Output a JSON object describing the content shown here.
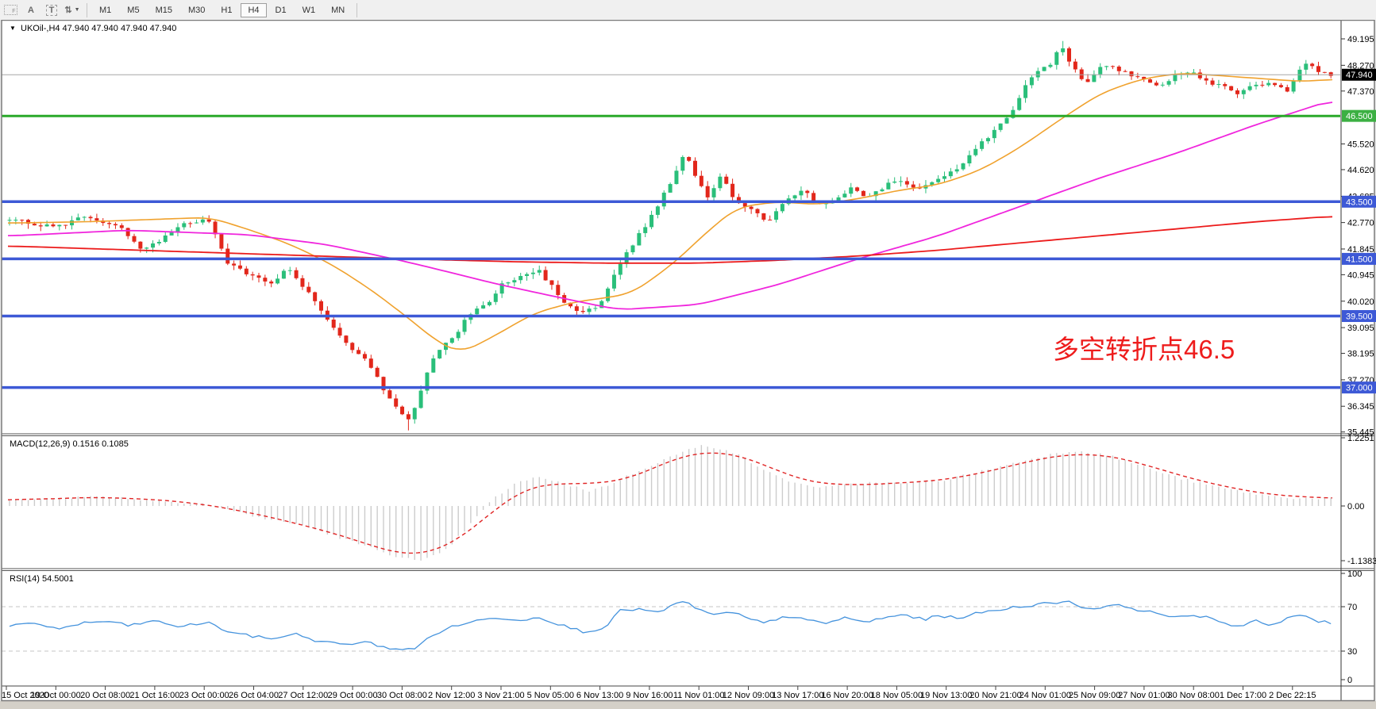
{
  "toolbar": {
    "icons": [
      {
        "name": "chart-template-icon",
        "glyph": "F"
      },
      {
        "name": "text-label-icon",
        "glyph": "A"
      },
      {
        "name": "text-tool-icon",
        "glyph": "T"
      },
      {
        "name": "arrows-tool-icon",
        "glyph": "⇅"
      }
    ],
    "timeframes": [
      "M1",
      "M5",
      "M15",
      "M30",
      "H1",
      "H4",
      "D1",
      "W1",
      "MN"
    ],
    "active_timeframe": "H4"
  },
  "chart": {
    "title_marker": "▼",
    "title": "UKOil-,H4 47.940 47.940 47.940 47.940",
    "symbol": "UKOil-",
    "timeframe": "H4",
    "annotation": "多空转折点46.5",
    "annotation_color": "#ee1c1c"
  },
  "chart_data": {
    "type": "candlestick",
    "title": "UKOil-,H4",
    "ohlc_display": {
      "open": "47.940",
      "high": "47.940",
      "low": "47.940",
      "close": "47.940"
    },
    "price_axis_ticks": [
      "49.195",
      "48.270",
      "47.370",
      "45.520",
      "44.620",
      "43.685",
      "42.770",
      "41.845",
      "40.945",
      "40.020",
      "39.095",
      "38.195",
      "37.270",
      "36.345",
      "35.445"
    ],
    "price_badges": [
      {
        "label": "47.940",
        "price": 47.94,
        "bg": "#000000"
      },
      {
        "label": "46.500",
        "price": 46.5,
        "bg": "#3cb043"
      },
      {
        "label": "43.500",
        "price": 43.5,
        "bg": "#3d59d6"
      },
      {
        "label": "41.500",
        "price": 41.5,
        "bg": "#3d59d6"
      },
      {
        "label": "39.500",
        "price": 39.5,
        "bg": "#3d59d6"
      },
      {
        "label": "37.000",
        "price": 37.0,
        "bg": "#3d59d6"
      }
    ],
    "hlines": [
      {
        "price": 47.94,
        "color": "#a6a6a6",
        "width": 1
      },
      {
        "price": 46.5,
        "color": "#2aa92a",
        "width": 3
      },
      {
        "price": 43.5,
        "color": "#3d59d6",
        "width": 3.5
      },
      {
        "price": 41.5,
        "color": "#3d59d6",
        "width": 3.5
      },
      {
        "price": 39.5,
        "color": "#3d59d6",
        "width": 3.5
      },
      {
        "price": 37.0,
        "color": "#3d59d6",
        "width": 3.5
      }
    ],
    "time_labels": [
      "15 Oct 2020",
      "19 Oct 00:00",
      "20 Oct 08:00",
      "21 Oct 16:00",
      "23 Oct 00:00",
      "26 Oct 04:00",
      "27 Oct 12:00",
      "29 Oct 00:00",
      "30 Oct 08:00",
      "2 Nov 12:00",
      "3 Nov 21:00",
      "5 Nov 05:00",
      "6 Nov 13:00",
      "9 Nov 16:00",
      "11 Nov 01:00",
      "12 Nov 09:00",
      "13 Nov 17:00",
      "16 Nov 20:00",
      "18 Nov 05:00",
      "19 Nov 13:00",
      "20 Nov 21:00",
      "24 Nov 01:00",
      "25 Nov 09:00",
      "27 Nov 01:00",
      "30 Nov 08:00",
      "1 Dec 17:00",
      "2 Dec 22:15"
    ],
    "price_path": [
      [
        0.005,
        42.85
      ],
      [
        0.037,
        42.6
      ],
      [
        0.058,
        43.0
      ],
      [
        0.085,
        42.6
      ],
      [
        0.1,
        41.85
      ],
      [
        0.113,
        42.1
      ],
      [
        0.131,
        42.75
      ],
      [
        0.152,
        42.85
      ],
      [
        0.165,
        41.4
      ],
      [
        0.183,
        40.9
      ],
      [
        0.201,
        40.6
      ],
      [
        0.21,
        41.3
      ],
      [
        0.226,
        40.3
      ],
      [
        0.241,
        39.4
      ],
      [
        0.256,
        38.4
      ],
      [
        0.268,
        38.0
      ],
      [
        0.277,
        37.4
      ],
      [
        0.287,
        36.6
      ],
      [
        0.303,
        35.8
      ],
      [
        0.314,
        37.4
      ],
      [
        0.323,
        38.3
      ],
      [
        0.338,
        38.9
      ],
      [
        0.348,
        39.6
      ],
      [
        0.36,
        39.9
      ],
      [
        0.372,
        40.6
      ],
      [
        0.39,
        40.9
      ],
      [
        0.399,
        41.1
      ],
      [
        0.409,
        40.6
      ],
      [
        0.421,
        39.9
      ],
      [
        0.433,
        39.6
      ],
      [
        0.445,
        39.9
      ],
      [
        0.457,
        41.0
      ],
      [
        0.47,
        42.0
      ],
      [
        0.482,
        42.8
      ],
      [
        0.494,
        43.8
      ],
      [
        0.503,
        44.5
      ],
      [
        0.509,
        45.2
      ],
      [
        0.518,
        44.4
      ],
      [
        0.527,
        43.6
      ],
      [
        0.537,
        44.4
      ],
      [
        0.549,
        43.4
      ],
      [
        0.561,
        43.2
      ],
      [
        0.573,
        42.8
      ],
      [
        0.585,
        43.6
      ],
      [
        0.598,
        43.9
      ],
      [
        0.61,
        43.4
      ],
      [
        0.622,
        43.5
      ],
      [
        0.634,
        44.0
      ],
      [
        0.646,
        43.7
      ],
      [
        0.659,
        44.0
      ],
      [
        0.671,
        44.3
      ],
      [
        0.683,
        43.9
      ],
      [
        0.695,
        44.2
      ],
      [
        0.707,
        44.4
      ],
      [
        0.72,
        44.9
      ],
      [
        0.732,
        45.5
      ],
      [
        0.744,
        46.1
      ],
      [
        0.756,
        46.7
      ],
      [
        0.765,
        47.5
      ],
      [
        0.774,
        48.0
      ],
      [
        0.784,
        48.3
      ],
      [
        0.793,
        48.9
      ],
      [
        0.802,
        48.2
      ],
      [
        0.811,
        47.6
      ],
      [
        0.82,
        48.1
      ],
      [
        0.829,
        48.3
      ],
      [
        0.841,
        48.0
      ],
      [
        0.854,
        47.8
      ],
      [
        0.866,
        47.5
      ],
      [
        0.878,
        47.9
      ],
      [
        0.89,
        48.1
      ],
      [
        0.902,
        47.7
      ],
      [
        0.915,
        47.5
      ],
      [
        0.927,
        47.3
      ],
      [
        0.939,
        47.6
      ],
      [
        0.951,
        47.7
      ],
      [
        0.963,
        47.4
      ],
      [
        0.976,
        48.4
      ],
      [
        0.988,
        48.0
      ],
      [
        1.0,
        47.94
      ]
    ],
    "extremes": [
      {
        "f": 0.303,
        "low": 35.5
      },
      {
        "f": 0.793,
        "high": 49.12
      }
    ],
    "ma_orange": [
      [
        0,
        42.75
      ],
      [
        0.061,
        42.8
      ],
      [
        0.122,
        42.9
      ],
      [
        0.152,
        42.95
      ],
      [
        0.183,
        42.5
      ],
      [
        0.213,
        42.0
      ],
      [
        0.244,
        41.3
      ],
      [
        0.274,
        40.4
      ],
      [
        0.305,
        39.3
      ],
      [
        0.323,
        38.6
      ],
      [
        0.341,
        38.2
      ],
      [
        0.366,
        38.8
      ],
      [
        0.396,
        39.6
      ],
      [
        0.427,
        40.0
      ],
      [
        0.445,
        40.1
      ],
      [
        0.47,
        40.3
      ],
      [
        0.5,
        41.3
      ],
      [
        0.53,
        42.6
      ],
      [
        0.549,
        43.3
      ],
      [
        0.579,
        43.5
      ],
      [
        0.61,
        43.4
      ],
      [
        0.64,
        43.6
      ],
      [
        0.671,
        43.9
      ],
      [
        0.701,
        44.1
      ],
      [
        0.732,
        44.6
      ],
      [
        0.762,
        45.4
      ],
      [
        0.793,
        46.4
      ],
      [
        0.823,
        47.3
      ],
      [
        0.854,
        47.8
      ],
      [
        0.884,
        48.0
      ],
      [
        0.915,
        47.9
      ],
      [
        0.945,
        47.8
      ],
      [
        0.976,
        47.7
      ],
      [
        1.0,
        47.8
      ]
    ],
    "ma_magenta": [
      [
        0,
        42.3
      ],
      [
        0.09,
        42.5
      ],
      [
        0.18,
        42.35
      ],
      [
        0.24,
        42.0
      ],
      [
        0.3,
        41.4
      ],
      [
        0.37,
        40.6
      ],
      [
        0.43,
        40.0
      ],
      [
        0.46,
        39.72
      ],
      [
        0.52,
        39.9
      ],
      [
        0.58,
        40.6
      ],
      [
        0.64,
        41.5
      ],
      [
        0.7,
        42.3
      ],
      [
        0.76,
        43.3
      ],
      [
        0.82,
        44.3
      ],
      [
        0.88,
        45.2
      ],
      [
        0.94,
        46.2
      ],
      [
        1.0,
        47.1
      ]
    ],
    "ma_red": [
      [
        0,
        41.95
      ],
      [
        0.1,
        41.8
      ],
      [
        0.2,
        41.65
      ],
      [
        0.3,
        41.5
      ],
      [
        0.38,
        41.4
      ],
      [
        0.45,
        41.35
      ],
      [
        0.52,
        41.35
      ],
      [
        0.58,
        41.45
      ],
      [
        0.64,
        41.6
      ],
      [
        0.7,
        41.8
      ],
      [
        0.76,
        42.05
      ],
      [
        0.82,
        42.3
      ],
      [
        0.88,
        42.55
      ],
      [
        0.94,
        42.8
      ],
      [
        1.0,
        43.0
      ]
    ],
    "macd": {
      "label": "MACD(12,26,9) 0.1516 0.1085",
      "value_main": 0.1516,
      "value_signal": 0.1085,
      "scale_labels": [
        "1.2251",
        "0.00",
        "-1.1383"
      ],
      "path": [
        [
          0,
          0.1
        ],
        [
          0.037,
          0.15
        ],
        [
          0.073,
          0.18
        ],
        [
          0.11,
          0.1
        ],
        [
          0.146,
          0.05
        ],
        [
          0.171,
          -0.1
        ],
        [
          0.195,
          -0.25
        ],
        [
          0.22,
          -0.35
        ],
        [
          0.244,
          -0.55
        ],
        [
          0.268,
          -0.75
        ],
        [
          0.293,
          -0.95
        ],
        [
          0.311,
          -1.05
        ],
        [
          0.329,
          -0.85
        ],
        [
          0.348,
          -0.35
        ],
        [
          0.366,
          0.15
        ],
        [
          0.384,
          0.45
        ],
        [
          0.402,
          0.55
        ],
        [
          0.421,
          0.4
        ],
        [
          0.439,
          0.28
        ],
        [
          0.457,
          0.45
        ],
        [
          0.482,
          0.75
        ],
        [
          0.506,
          1.0
        ],
        [
          0.524,
          1.15
        ],
        [
          0.543,
          1.05
        ],
        [
          0.561,
          0.8
        ],
        [
          0.579,
          0.55
        ],
        [
          0.598,
          0.4
        ],
        [
          0.616,
          0.35
        ],
        [
          0.634,
          0.4
        ],
        [
          0.652,
          0.45
        ],
        [
          0.671,
          0.42
        ],
        [
          0.689,
          0.45
        ],
        [
          0.707,
          0.5
        ],
        [
          0.732,
          0.65
        ],
        [
          0.756,
          0.8
        ],
        [
          0.78,
          0.95
        ],
        [
          0.805,
          1.05
        ],
        [
          0.829,
          0.95
        ],
        [
          0.854,
          0.75
        ],
        [
          0.878,
          0.55
        ],
        [
          0.902,
          0.4
        ],
        [
          0.927,
          0.28
        ],
        [
          0.951,
          0.18
        ],
        [
          0.976,
          0.14
        ],
        [
          1.0,
          0.15
        ]
      ]
    },
    "rsi": {
      "label": "RSI(14) 54.5001",
      "value": 54.5001,
      "scale_labels": [
        "100",
        "70",
        "30",
        "0"
      ],
      "levels": [
        70,
        30
      ],
      "path": [
        [
          0,
          52
        ],
        [
          0.02,
          55
        ],
        [
          0.04,
          50
        ],
        [
          0.055,
          55
        ],
        [
          0.075,
          57
        ],
        [
          0.09,
          53
        ],
        [
          0.11,
          57
        ],
        [
          0.13,
          52
        ],
        [
          0.15,
          56
        ],
        [
          0.165,
          48
        ],
        [
          0.18,
          44
        ],
        [
          0.2,
          41
        ],
        [
          0.215,
          46
        ],
        [
          0.23,
          40
        ],
        [
          0.25,
          36
        ],
        [
          0.27,
          38
        ],
        [
          0.285,
          33
        ],
        [
          0.305,
          31
        ],
        [
          0.32,
          45
        ],
        [
          0.335,
          52
        ],
        [
          0.35,
          57
        ],
        [
          0.37,
          60
        ],
        [
          0.39,
          58
        ],
        [
          0.4,
          61
        ],
        [
          0.415,
          54
        ],
        [
          0.435,
          47
        ],
        [
          0.45,
          52
        ],
        [
          0.46,
          66
        ],
        [
          0.475,
          68
        ],
        [
          0.49,
          64
        ],
        [
          0.5,
          72
        ],
        [
          0.51,
          74
        ],
        [
          0.52,
          68
        ],
        [
          0.53,
          62
        ],
        [
          0.545,
          65
        ],
        [
          0.56,
          58
        ],
        [
          0.57,
          55
        ],
        [
          0.585,
          62
        ],
        [
          0.6,
          58
        ],
        [
          0.615,
          55
        ],
        [
          0.63,
          60
        ],
        [
          0.645,
          56
        ],
        [
          0.66,
          60
        ],
        [
          0.675,
          63
        ],
        [
          0.69,
          58
        ],
        [
          0.7,
          62
        ],
        [
          0.715,
          60
        ],
        [
          0.73,
          64
        ],
        [
          0.745,
          67
        ],
        [
          0.76,
          70
        ],
        [
          0.775,
          72
        ],
        [
          0.79,
          74
        ],
        [
          0.8,
          75
        ],
        [
          0.81,
          68
        ],
        [
          0.825,
          70
        ],
        [
          0.84,
          71
        ],
        [
          0.855,
          66
        ],
        [
          0.87,
          63
        ],
        [
          0.885,
          60
        ],
        [
          0.9,
          62
        ],
        [
          0.915,
          56
        ],
        [
          0.925,
          52
        ],
        [
          0.94,
          58
        ],
        [
          0.95,
          52
        ],
        [
          0.965,
          60
        ],
        [
          0.975,
          63
        ],
        [
          0.985,
          57
        ],
        [
          1.0,
          54.5
        ]
      ]
    },
    "colors": {
      "up": "#2abf7a",
      "down": "#e2271b",
      "ma_orange": "#f0a22e",
      "ma_magenta": "#f026dd",
      "ma_red": "#ec1c1c",
      "macd_hist": "#cccccc",
      "macd_signal": "#e02424",
      "rsi_line": "#4593dd",
      "level_dash": "#c4c4c4",
      "axis_text": "#000000",
      "border": "#7a7a7a"
    }
  }
}
